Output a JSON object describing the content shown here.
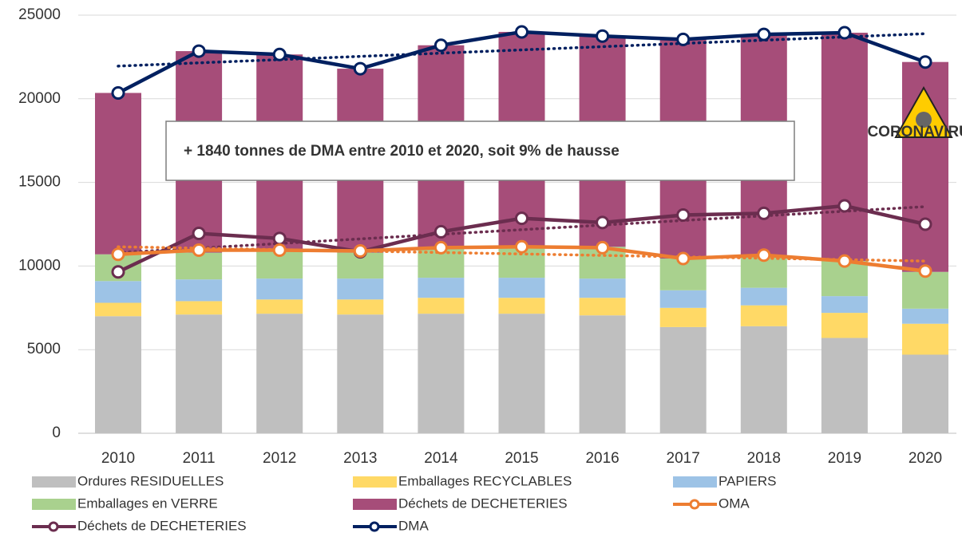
{
  "chart_data": {
    "type": "bar",
    "stacked": true,
    "categories": [
      "2010",
      "2011",
      "2012",
      "2013",
      "2014",
      "2015",
      "2016",
      "2017",
      "2018",
      "2019",
      "2020"
    ],
    "ylim": [
      0,
      25000
    ],
    "yticks": [
      0,
      5000,
      10000,
      15000,
      20000,
      25000
    ],
    "grid": true,
    "annotation": "+ 1840 tonnes de DMA entre 2010 et 2020, soit 9% de hausse",
    "icon_label": "CORONAVIRUS",
    "trendlines": true,
    "series": [
      {
        "name": "Ordures RESIDUELLES",
        "kind": "bar",
        "color": "#bfbfbf",
        "values": [
          7000,
          7100,
          7150,
          7100,
          7150,
          7150,
          7050,
          6350,
          6400,
          5700,
          4700
        ]
      },
      {
        "name": "Emballages RECYCLABLES",
        "kind": "bar",
        "color": "#ffd966",
        "values": [
          800,
          800,
          850,
          900,
          950,
          950,
          1050,
          1150,
          1250,
          1500,
          1850
        ]
      },
      {
        "name": "PAPIERS",
        "kind": "bar",
        "color": "#9dc3e6",
        "values": [
          1300,
          1300,
          1250,
          1250,
          1200,
          1200,
          1150,
          1050,
          1050,
          1000,
          900
        ]
      },
      {
        "name": "Emballages en VERRE",
        "kind": "bar",
        "color": "#a9d18e",
        "values": [
          1600,
          1600,
          1600,
          1550,
          1750,
          1850,
          1900,
          1900,
          1950,
          2100,
          2200
        ]
      },
      {
        "name": "Déchets de DECHETERIES",
        "kind": "bar",
        "color": "#a64d79",
        "values": [
          9650,
          12050,
          11800,
          11000,
          12150,
          12850,
          12600,
          13100,
          13200,
          13650,
          12550
        ]
      },
      {
        "name": "OMA",
        "kind": "line",
        "color": "#ed7d31",
        "values": [
          10700,
          10950,
          10950,
          10900,
          11100,
          11150,
          11100,
          10450,
          10650,
          10300,
          9700
        ]
      },
      {
        "name": "Déchets de DECHETERIES",
        "kind": "line",
        "color": "#6b2d4f",
        "values": [
          9650,
          11950,
          11650,
          10850,
          12050,
          12850,
          12600,
          13050,
          13150,
          13600,
          12500
        ]
      },
      {
        "name": "DMA",
        "kind": "line",
        "color": "#002060",
        "values": [
          20350,
          22850,
          22650,
          21800,
          23200,
          24000,
          23750,
          23550,
          23850,
          23950,
          22200
        ]
      }
    ]
  }
}
